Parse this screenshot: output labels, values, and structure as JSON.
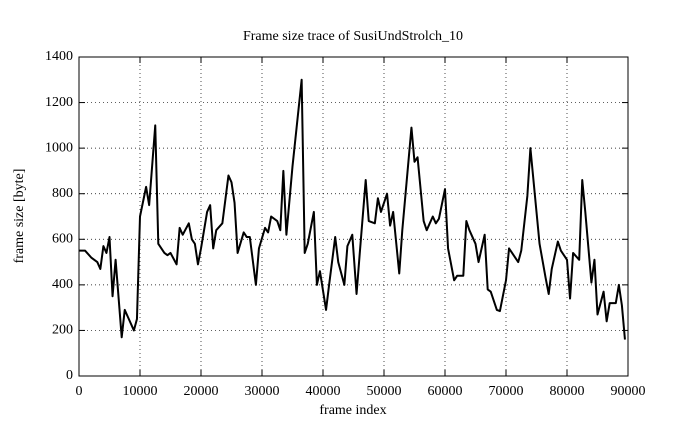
{
  "chart_data": {
    "type": "line",
    "title": "Frame size trace of SusiUndStrolch_10",
    "xlabel": "frame index",
    "ylabel": "frame size [byte]",
    "x": [
      0,
      1000,
      2000,
      3000,
      3500,
      4000,
      4500,
      5000,
      5500,
      6000,
      7000,
      7500,
      8000,
      9000,
      9500,
      10000,
      11000,
      11500,
      12500,
      13000,
      14000,
      14500,
      15000,
      16000,
      16500,
      17000,
      18000,
      18500,
      19000,
      19500,
      20000,
      21000,
      21500,
      22000,
      22500,
      23500,
      24500,
      25000,
      25500,
      26000,
      27000,
      27500,
      28000,
      29000,
      29500,
      30500,
      31000,
      31500,
      32500,
      33000,
      33500,
      34000,
      35000,
      36500,
      37000,
      37500,
      38500,
      39000,
      39500,
      40500,
      41000,
      42000,
      42500,
      43500,
      44000,
      44800,
      45500,
      46000,
      47000,
      47500,
      48500,
      49000,
      49500,
      50500,
      51000,
      51500,
      52500,
      53000,
      53500,
      54500,
      55000,
      55500,
      56500,
      57000,
      58000,
      58500,
      59000,
      60000,
      60500,
      61500,
      62000,
      63000,
      63500,
      64000,
      65000,
      65500,
      66500,
      67000,
      67500,
      68500,
      69000,
      70000,
      70500,
      71000,
      72000,
      72500,
      73500,
      74000,
      75000,
      75500,
      76500,
      77000,
      77500,
      78500,
      79000,
      80000,
      80500,
      81000,
      82000,
      82500,
      83000,
      84000,
      84500,
      85000,
      86000,
      86500,
      87000,
      88000,
      88500,
      89000,
      89500
    ],
    "values": [
      550,
      550,
      520,
      500,
      470,
      570,
      540,
      610,
      350,
      510,
      170,
      290,
      260,
      200,
      250,
      700,
      830,
      750,
      1100,
      580,
      540,
      530,
      540,
      490,
      650,
      620,
      670,
      600,
      580,
      490,
      560,
      720,
      750,
      560,
      640,
      670,
      880,
      850,
      760,
      540,
      630,
      610,
      610,
      400,
      560,
      650,
      630,
      700,
      680,
      640,
      900,
      620,
      920,
      1300,
      540,
      580,
      720,
      400,
      460,
      290,
      400,
      610,
      500,
      400,
      570,
      620,
      360,
      530,
      860,
      680,
      670,
      780,
      720,
      800,
      660,
      720,
      450,
      640,
      790,
      1090,
      940,
      960,
      680,
      640,
      700,
      670,
      690,
      820,
      560,
      420,
      440,
      440,
      680,
      640,
      580,
      500,
      620,
      380,
      370,
      290,
      285,
      420,
      560,
      540,
      500,
      550,
      790,
      1000,
      720,
      580,
      430,
      360,
      470,
      590,
      550,
      510,
      340,
      540,
      510,
      860,
      720,
      410,
      510,
      270,
      370,
      240,
      320,
      320,
      400,
      310,
      160
    ],
    "color": "#000000",
    "xlim": [
      0,
      90000
    ],
    "xticks": [
      0,
      10000,
      20000,
      30000,
      40000,
      50000,
      60000,
      70000,
      80000,
      90000
    ],
    "ylim": [
      0,
      1400
    ],
    "yticks": [
      0,
      200,
      400,
      600,
      800,
      1000,
      1200,
      1400
    ],
    "grid": true
  }
}
